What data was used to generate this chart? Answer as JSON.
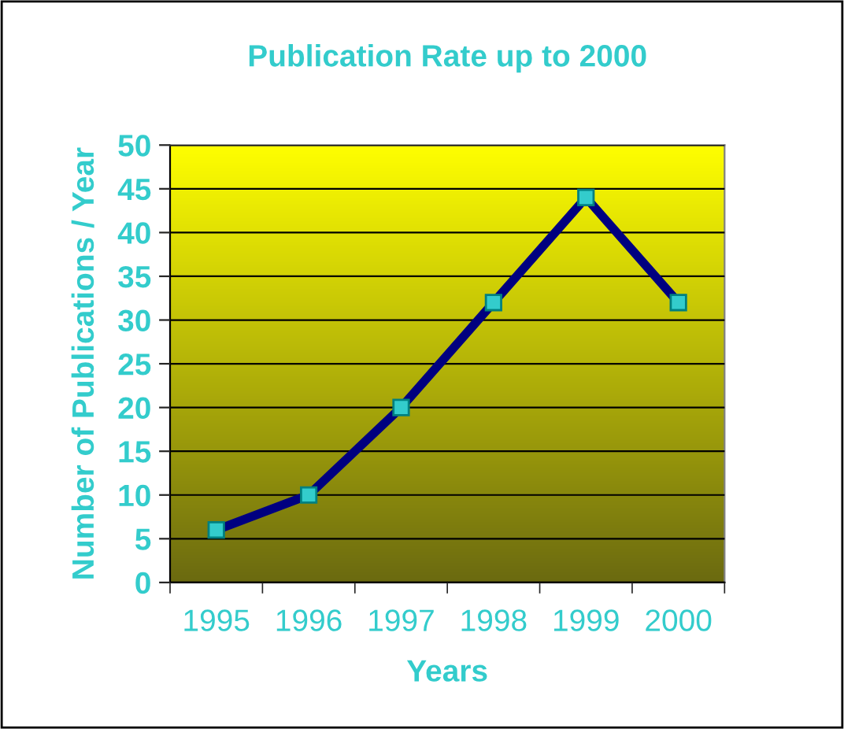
{
  "chart_data": {
    "type": "line",
    "title": "Publication Rate up to 2000",
    "xlabel": "Years",
    "ylabel": "Number of Publications / Year",
    "categories": [
      "1995",
      "1996",
      "1997",
      "1998",
      "1999",
      "2000"
    ],
    "series": [
      {
        "color": "#000080",
        "values": [
          6,
          10,
          20,
          32,
          44,
          32
        ]
      }
    ],
    "ylim": [
      0,
      50
    ],
    "yticks": [
      0,
      5,
      10,
      15,
      20,
      25,
      30,
      35,
      40,
      45,
      50
    ],
    "grid": "y",
    "marker": "square",
    "line_style": "solid"
  }
}
